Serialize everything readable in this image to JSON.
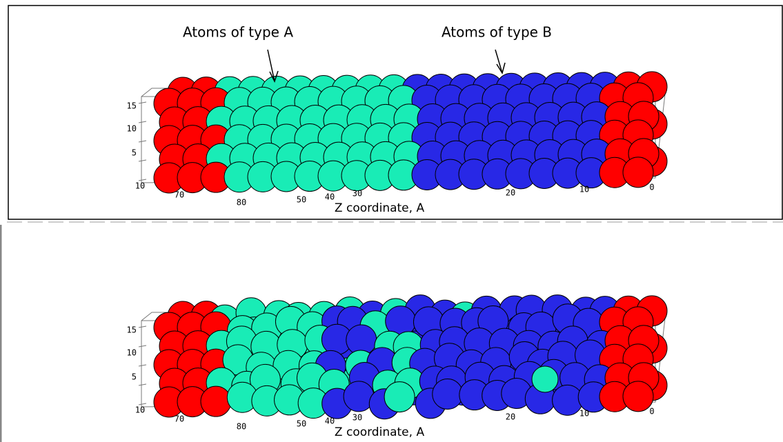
{
  "panels": [
    {
      "annotations": [
        "Atoms of type A",
        "Atoms of type B"
      ],
      "y_ticks": [
        "15",
        "10",
        "5"
      ],
      "x_ticks": [
        "10",
        "70",
        "80",
        "50",
        "40",
        "30",
        "20",
        "10",
        "0"
      ],
      "x_label": "Z coordinate, A"
    },
    {
      "y_ticks": [
        "15",
        "10",
        "5"
      ],
      "x_ticks": [
        "10",
        "70",
        "80",
        "50",
        "40",
        "30",
        "20",
        "10",
        "0"
      ],
      "x_label": "Z coordinate, A"
    }
  ]
}
